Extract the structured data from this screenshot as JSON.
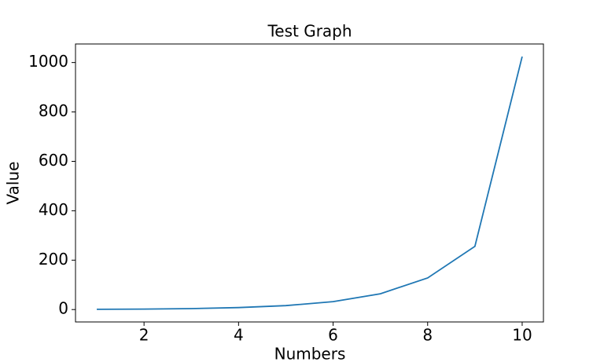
{
  "chart_data": {
    "type": "line",
    "title": "Test Graph",
    "x_label": "Numbers",
    "y_label": "Value",
    "x": [
      1,
      2,
      3,
      4,
      5,
      6,
      7,
      8,
      9,
      10
    ],
    "series": [
      {
        "color": "#1f77b4",
        "values": [
          1,
          2,
          4,
          8,
          16,
          32,
          64,
          128,
          256,
          1024
        ]
      }
    ],
    "xlim": [
      0.55,
      10.45
    ],
    "xticks": [
      2,
      4,
      6,
      8,
      10
    ],
    "ylim": [
      -50.15,
      1075.15
    ],
    "yticks": [
      0,
      200,
      400,
      600,
      800,
      1000
    ]
  }
}
